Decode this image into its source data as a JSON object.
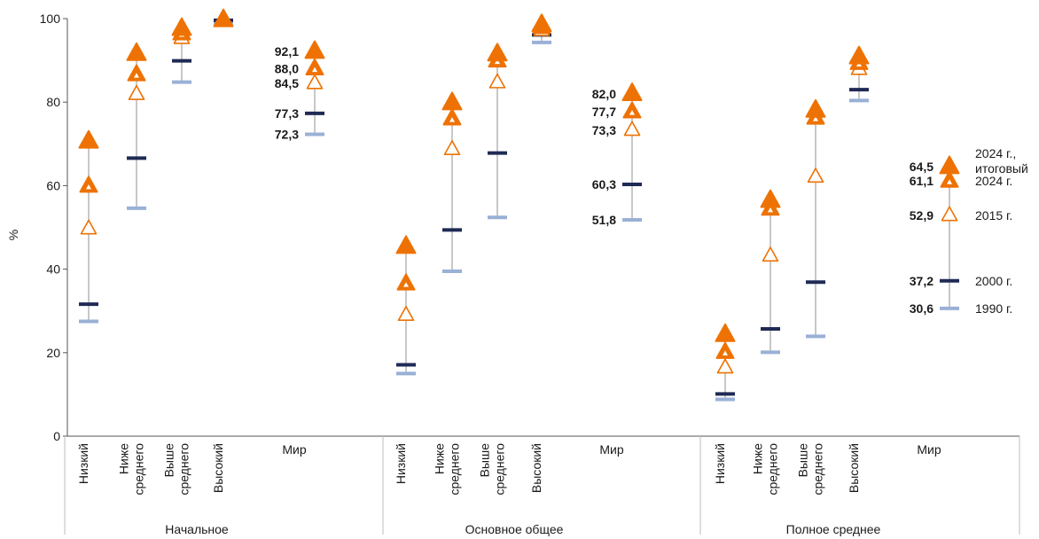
{
  "chart_data": {
    "type": "scatter",
    "ylabel": "%",
    "ylim": [
      0,
      100
    ],
    "yticks": [
      0,
      20,
      40,
      60,
      80,
      100
    ],
    "colors": {
      "2024_final": "#ee7203",
      "2024": "#ee7203",
      "2015": "#ee7203",
      "2000": "#1f2a55",
      "1990": "#9ab0d6",
      "whisker": "#c8c8c8",
      "axis": "#555555"
    },
    "series_names": {
      "2024_final": "2024 г., итоговый",
      "2024": "2024 г.",
      "2015": "2015 г.",
      "2000": "2000 г.",
      "1990": "1990 г."
    },
    "groups": [
      {
        "name": "Начальное",
        "categories": [
          {
            "label": [
              "Низкий"
            ],
            "v1990": 27.5,
            "v2000": 31.6,
            "v2015": 49.7,
            "v2024": 59.9,
            "v2024_final": 70.6
          },
          {
            "label": [
              "Ниже",
              "среднего"
            ],
            "v1990": 54.6,
            "v2000": 66.6,
            "v2015": 81.9,
            "v2024": 86.6,
            "v2024_final": 91.6
          },
          {
            "label": [
              "Выше",
              "среднего"
            ],
            "v1990": 84.8,
            "v2000": 89.9,
            "v2015": 95.3,
            "v2024": 96.4,
            "v2024_final": 97.6
          },
          {
            "label": [
              "Высокий"
            ],
            "v1990": 99.0,
            "v2000": 99.6,
            "v2015": 99.6,
            "v2024": 99.6,
            "v2024_final": 99.7
          }
        ],
        "world": {
          "label": "Мир",
          "v1990": 72.3,
          "v2000": 77.3,
          "v2015": 84.5,
          "v2024": 88.0,
          "v2024_final": 92.1,
          "labels": {
            "v1990": "72,3",
            "v2000": "77,3",
            "v2015": "84,5",
            "v2024": "88,0",
            "v2024_final": "92,1"
          }
        }
      },
      {
        "name": "Основное общее",
        "categories": [
          {
            "label": [
              "Низкий"
            ],
            "v1990": 15.0,
            "v2000": 17.1,
            "v2015": 29.0,
            "v2024": 36.5,
            "v2024_final": 45.4
          },
          {
            "label": [
              "Ниже",
              "среднего"
            ],
            "v1990": 39.5,
            "v2000": 49.4,
            "v2015": 68.7,
            "v2024": 76.0,
            "v2024_final": 79.8
          },
          {
            "label": [
              "Выше",
              "среднего"
            ],
            "v1990": 52.4,
            "v2000": 67.8,
            "v2015": 84.7,
            "v2024": 89.9,
            "v2024_final": 91.5
          },
          {
            "label": [
              "Высокий"
            ],
            "v1990": 94.3,
            "v2000": 96.1,
            "v2015": 97.2,
            "v2024": 97.9,
            "v2024_final": 98.5
          }
        ],
        "world": {
          "label": "Мир",
          "v1990": 51.8,
          "v2000": 60.3,
          "v2015": 73.3,
          "v2024": 77.7,
          "v2024_final": 82.0,
          "labels": {
            "v1990": "51,8",
            "v2000": "60,3",
            "v2015": "73,3",
            "v2024": "77,7",
            "v2024_final": "82,0"
          }
        }
      },
      {
        "name": "Полное среднее",
        "categories": [
          {
            "label": [
              "Низкий"
            ],
            "v1990": 8.8,
            "v2000": 10.1,
            "v2015": 16.4,
            "v2024": 20.1,
            "v2024_final": 24.3
          },
          {
            "label": [
              "Ниже",
              "среднего"
            ],
            "v1990": 20.1,
            "v2000": 25.7,
            "v2015": 43.2,
            "v2024": 54.4,
            "v2024_final": 56.4
          },
          {
            "label": [
              "Выше",
              "среднего"
            ],
            "v1990": 23.9,
            "v2000": 36.9,
            "v2015": 62.1,
            "v2024": 76.2,
            "v2024_final": 78.0
          },
          {
            "label": [
              "Высокий"
            ],
            "v1990": 80.4,
            "v2000": 83.0,
            "v2015": 87.9,
            "v2024": 89.3,
            "v2024_final": 90.8
          }
        ],
        "world": {
          "label": "Мир",
          "v1990": 30.6,
          "v2000": 37.2,
          "v2015": 52.9,
          "v2024": 61.1,
          "v2024_final": 64.5,
          "labels": {
            "v1990": "30,6",
            "v2000": "37,2",
            "v2015": "52,9",
            "v2024": "61,1",
            "v2024_final": "64,5"
          },
          "legend": {
            "v2024_final": [
              "2024 г.,",
              "итоговый"
            ],
            "v2024": [
              "2024 г."
            ],
            "v2015": [
              "2015 г."
            ],
            "v2000": [
              "2000 г."
            ],
            "v1990": [
              "1990 г."
            ]
          }
        }
      }
    ]
  }
}
